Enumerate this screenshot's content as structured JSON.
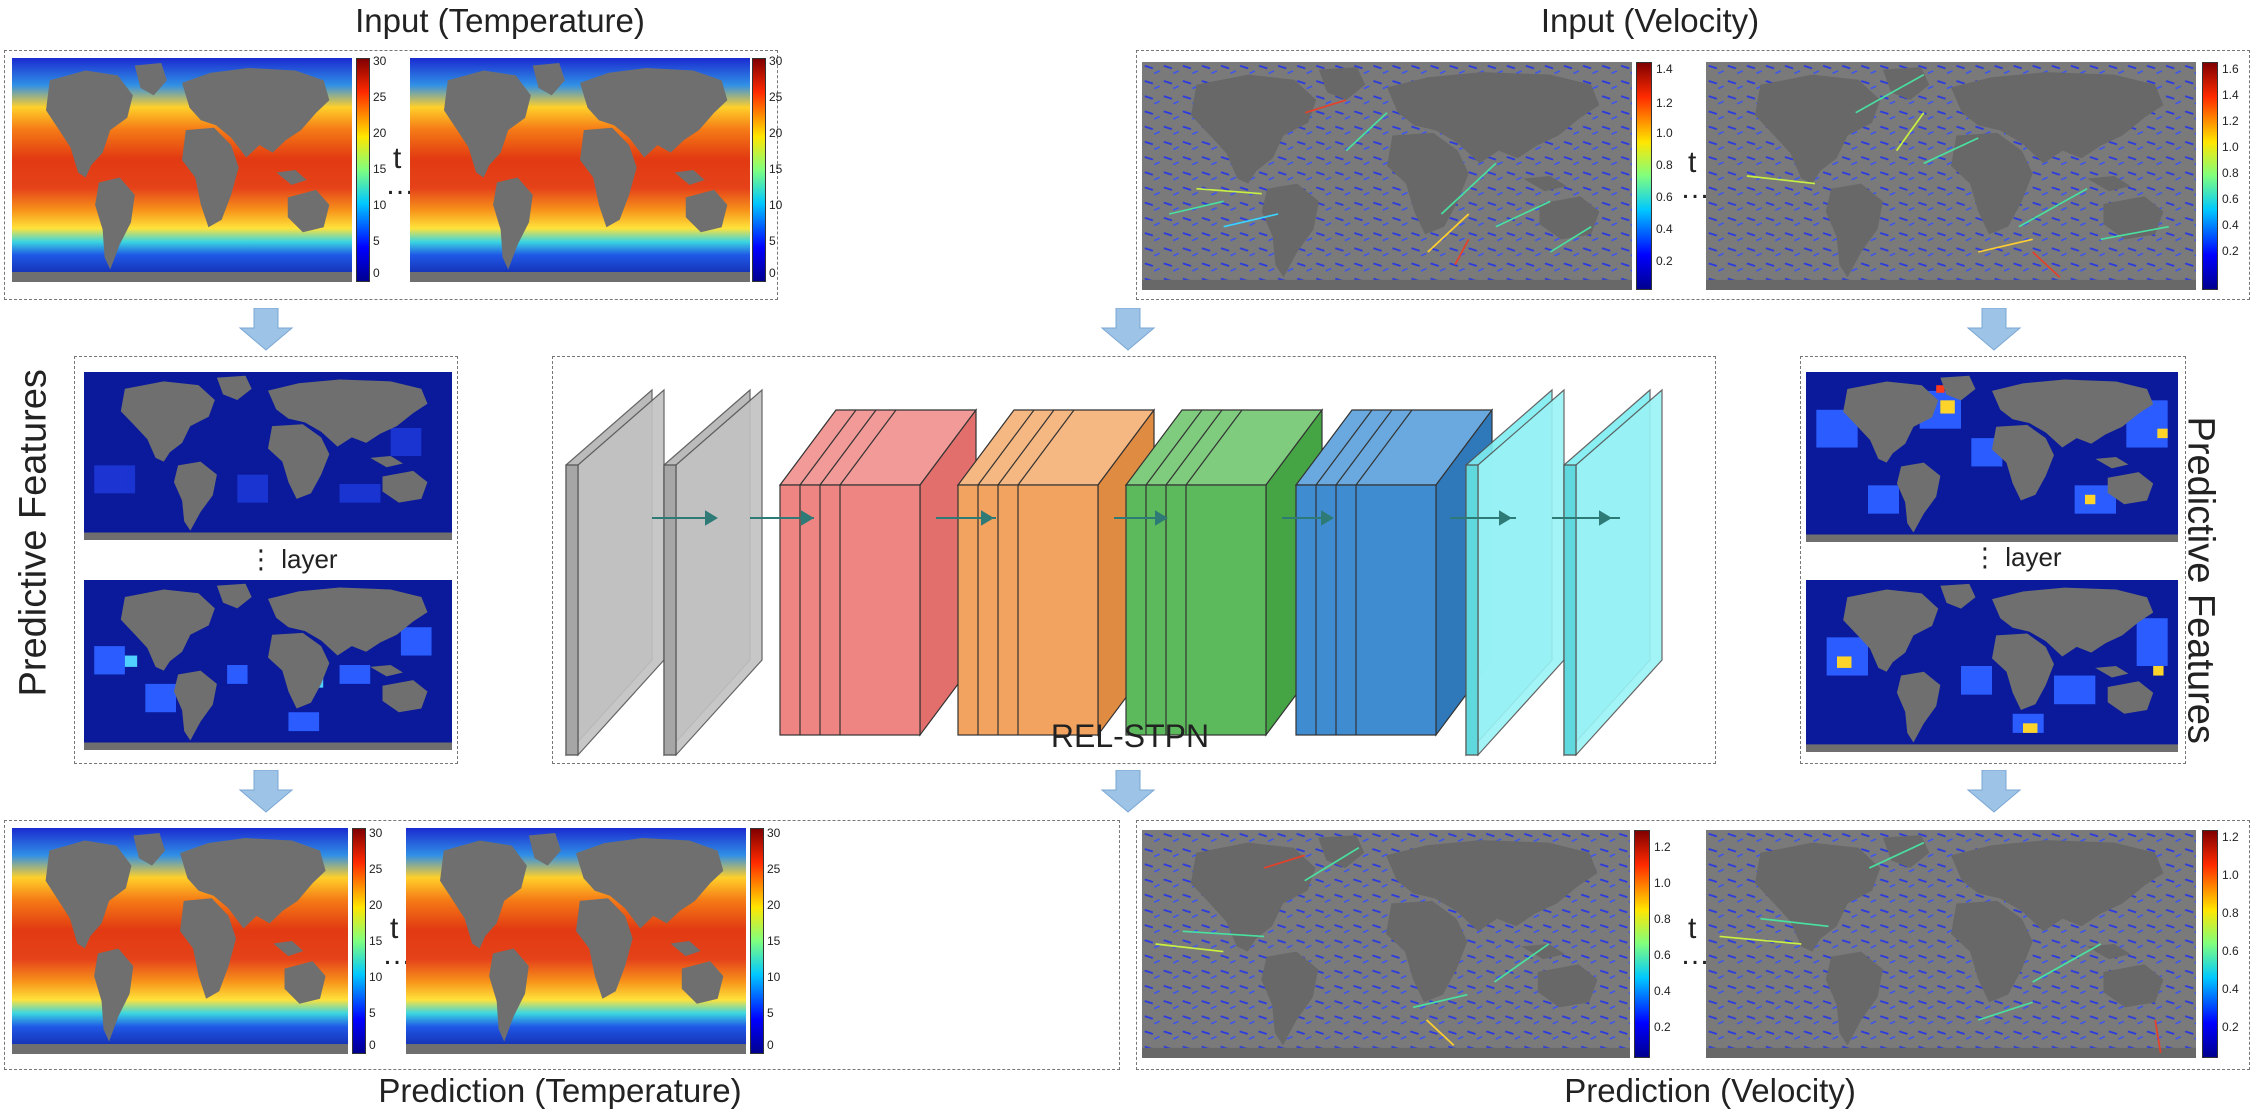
{
  "titles": {
    "input_temperature": "Input (Temperature)",
    "input_velocity": "Input (Velocity)",
    "prediction_temperature": "Prediction (Temperature)",
    "prediction_velocity": "Prediction (Velocity)",
    "features_left": "Predictive Features",
    "features_right": "Predictive Features",
    "network": "REL-STPN"
  },
  "labels": {
    "t": "t",
    "ellipsis": "…",
    "layer": "layer",
    "vdots": "⋮"
  },
  "colorbars": {
    "temperature_input_1": [
      "30",
      "25",
      "20",
      "15",
      "10",
      "5",
      "0"
    ],
    "temperature_input_2": [
      "30",
      "25",
      "20",
      "15",
      "10",
      "5",
      "0"
    ],
    "velocity_input_1": [
      "1.4",
      "1.2",
      "1.0",
      "0.8",
      "0.6",
      "0.4",
      "0.2"
    ],
    "velocity_input_2": [
      "1.6",
      "1.4",
      "1.2",
      "1.0",
      "0.8",
      "0.6",
      "0.4",
      "0.2"
    ],
    "temperature_pred_1": [
      "30",
      "25",
      "20",
      "15",
      "10",
      "5",
      "0"
    ],
    "temperature_pred_2": [
      "30",
      "25",
      "20",
      "15",
      "10",
      "5",
      "0"
    ],
    "velocity_pred_1": [
      "1.2",
      "1.0",
      "0.8",
      "0.6",
      "0.4",
      "0.2"
    ],
    "velocity_pred_2": [
      "1.2",
      "1.0",
      "0.8",
      "0.6",
      "0.4",
      "0.2"
    ]
  },
  "network_blocks": [
    {
      "name": "input-block-1",
      "color": "#b4b4b4"
    },
    {
      "name": "input-block-2",
      "color": "#b4b4b4"
    },
    {
      "name": "block-red",
      "color": "#ef8582"
    },
    {
      "name": "block-orange",
      "color": "#f2a35f"
    },
    {
      "name": "block-green",
      "color": "#5cba5c"
    },
    {
      "name": "block-blue",
      "color": "#3f8cd0"
    },
    {
      "name": "block-cyan-1",
      "color": "#7eeef2"
    },
    {
      "name": "block-cyan-2",
      "color": "#7eeef2"
    }
  ],
  "colors": {
    "ocean_warm": "#e8421e",
    "ocean_cold": "#1d2fd6",
    "land": "#6f6f6f",
    "velocity_ocean": "#7a7a7a",
    "feature_bg": "#0a1a9a",
    "arrow": "#9dc3e6"
  }
}
